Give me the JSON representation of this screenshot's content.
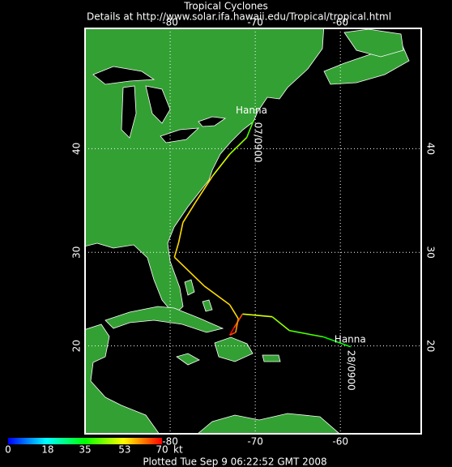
{
  "map": {
    "title": "Tropical Cyclones",
    "subtitle": "Details at http://www.solar.ifa.hawaii.edu/Tropical/tropical.html",
    "projection": "mercator",
    "lonlim": [
      -90,
      -50.5
    ],
    "latlim": [
      10,
      50
    ],
    "lonticks": [
      -80,
      -70,
      -60
    ],
    "latticks": [
      20,
      30,
      40
    ],
    "grid": true,
    "storm": {
      "name": "Hanna",
      "start_label": "28/0900",
      "end_label": "07/0900",
      "lon": [
        -58.8,
        -62,
        -66,
        -68,
        -71.5,
        -72.5,
        -73,
        -72.3,
        -72,
        -73,
        -76,
        -79.5,
        -79,
        -78.5,
        -77,
        -75,
        -73,
        -71,
        -70.2
      ],
      "lat": [
        19.9,
        21,
        21.7,
        23.2,
        23.5,
        22,
        21.2,
        21.5,
        23,
        24.5,
        26.5,
        29.5,
        31,
        33,
        35,
        37.5,
        39.5,
        41,
        42.5
      ],
      "wind": [
        35,
        40,
        45,
        50,
        65,
        70,
        65,
        60,
        55,
        55,
        55,
        55,
        55,
        55,
        55,
        50,
        45,
        40,
        40
      ]
    },
    "colorbar": {
      "lim": [
        0,
        70
      ],
      "ticks": [
        0,
        18,
        35,
        53,
        70
      ],
      "units": "kt",
      "colors": [
        "#0000ff",
        "#00ffff",
        "#00ff00",
        "#ffff00",
        "#ff0000"
      ]
    },
    "footer": "Plotted Tue Sep 9 06:22:52 GMT 2008"
  }
}
